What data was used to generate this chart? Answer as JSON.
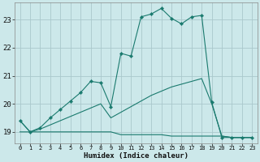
{
  "title": "",
  "xlabel": "Humidex (Indice chaleur)",
  "background_color": "#cce8ea",
  "grid_color": "#aac8cc",
  "line_color": "#1a7a6e",
  "xlim": [
    -0.5,
    23.5
  ],
  "ylim": [
    18.6,
    23.6
  ],
  "yticks": [
    19,
    20,
    21,
    22,
    23
  ],
  "xticks": [
    0,
    1,
    2,
    3,
    4,
    5,
    6,
    7,
    8,
    9,
    10,
    11,
    12,
    13,
    14,
    15,
    16,
    17,
    18,
    19,
    20,
    21,
    22,
    23
  ],
  "series1_x": [
    0,
    1,
    2,
    3,
    4,
    5,
    6,
    7,
    8,
    9,
    10,
    11,
    12,
    13,
    14,
    15,
    16,
    17,
    18,
    19,
    20,
    21,
    22,
    23
  ],
  "series1_y": [
    19.4,
    19.0,
    19.0,
    19.0,
    19.0,
    19.0,
    19.0,
    19.0,
    19.0,
    19.0,
    18.9,
    18.9,
    18.9,
    18.9,
    18.9,
    18.85,
    18.85,
    18.85,
    18.85,
    18.85,
    18.85,
    18.8,
    18.8,
    18.8
  ],
  "series2_x": [
    0,
    1,
    2,
    3,
    4,
    5,
    6,
    7,
    8,
    9,
    10,
    11,
    12,
    13,
    14,
    15,
    16,
    17,
    18,
    19,
    20,
    21,
    22,
    23
  ],
  "series2_y": [
    19.0,
    19.0,
    19.1,
    19.25,
    19.4,
    19.55,
    19.7,
    19.85,
    20.0,
    19.5,
    19.7,
    19.9,
    20.1,
    20.3,
    20.45,
    20.6,
    20.7,
    20.8,
    20.9,
    20.0,
    18.85,
    18.8,
    18.8,
    18.8
  ],
  "series3_x": [
    0,
    1,
    2,
    3,
    4,
    5,
    6,
    7,
    8,
    9,
    10,
    11,
    12,
    13,
    14,
    15,
    16,
    17,
    18,
    19,
    20,
    21,
    22,
    23
  ],
  "series3_y": [
    19.4,
    19.0,
    19.15,
    19.5,
    19.8,
    20.1,
    20.4,
    20.8,
    20.75,
    19.9,
    21.8,
    21.7,
    23.1,
    23.2,
    23.4,
    23.05,
    22.85,
    23.1,
    23.15,
    20.05,
    18.8,
    18.8,
    18.8,
    18.8
  ]
}
